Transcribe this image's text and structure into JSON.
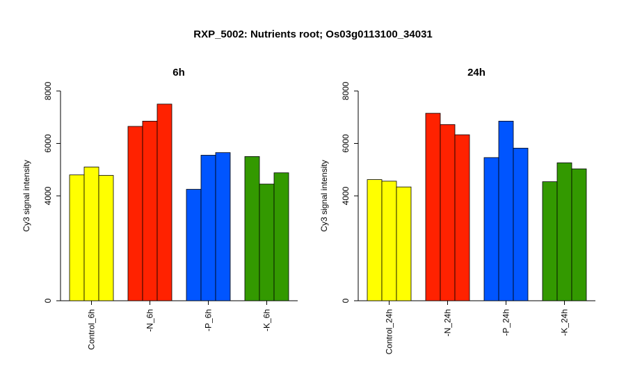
{
  "chart_data": {
    "title": "RXP_5002: Nutrients root; Os03g0113100_34031",
    "type": "bar",
    "panels": [
      {
        "title": "6h",
        "ylabel": "Cy3 signal intensity",
        "ylim": [
          0,
          8000
        ],
        "yticks": [
          "0",
          "4000",
          "6000",
          "8000"
        ],
        "groups": [
          {
            "label": "Control_6h",
            "color": "#FFFF00",
            "values": [
              4800,
              5100,
              4780
            ]
          },
          {
            "label": "-N_6h",
            "color": "#FF2200",
            "values": [
              6650,
              6850,
              7500
            ]
          },
          {
            "label": "-P_6h",
            "color": "#0055FF",
            "values": [
              4250,
              5550,
              5650
            ]
          },
          {
            "label": "-K_6h",
            "color": "#339900",
            "values": [
              5500,
              4450,
              4880
            ]
          }
        ]
      },
      {
        "title": "24h",
        "ylabel": "Cy3 signal intensity",
        "ylim": [
          0,
          8000
        ],
        "yticks": [
          "0",
          "4000",
          "6000",
          "8000"
        ],
        "groups": [
          {
            "label": "Control_24h",
            "color": "#FFFF00",
            "values": [
              4620,
              4560,
              4340
            ]
          },
          {
            "label": "-N_24h",
            "color": "#FF2200",
            "values": [
              7150,
              6720,
              6330
            ]
          },
          {
            "label": "-P_24h",
            "color": "#0055FF",
            "values": [
              5460,
              6850,
              5820
            ]
          },
          {
            "label": "-K_24h",
            "color": "#339900",
            "values": [
              4540,
              5260,
              5030
            ]
          }
        ]
      }
    ]
  }
}
